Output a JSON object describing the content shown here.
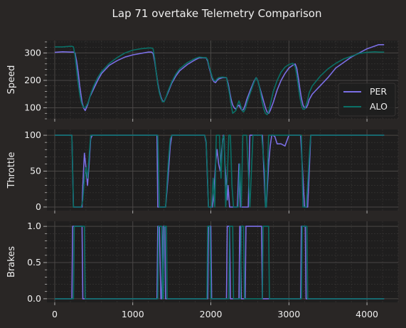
{
  "figure": {
    "title": "Lap 71 overtake Telemetry Comparison"
  },
  "colors": {
    "background": "#292625",
    "panel": "#1f1e1e",
    "grid_major": "#4a4746",
    "grid_minor": "#3a3837",
    "text": "#eeeeee",
    "PER": "#7b6fe6",
    "ALO": "#0a6f66"
  },
  "chart_data": [
    {
      "type": "line",
      "ylabel": "Speed",
      "xlim": [
        -100,
        4400
      ],
      "ylim": [
        60,
        345
      ],
      "yticks": [
        100,
        200,
        300
      ],
      "xticks": [
        0,
        1000,
        2000,
        3000,
        4000
      ],
      "legend": {
        "placement": "lower-right",
        "entries": [
          "PER",
          "ALO"
        ]
      },
      "series": [
        {
          "name": "PER",
          "x": [
            0,
            100,
            200,
            240,
            260,
            280,
            300,
            320,
            340,
            350,
            370,
            390,
            420,
            450,
            500,
            550,
            600,
            700,
            800,
            900,
            1000,
            1100,
            1200,
            1240,
            1260,
            1280,
            1300,
            1320,
            1340,
            1360,
            1380,
            1400,
            1420,
            1450,
            1500,
            1550,
            1600,
            1700,
            1800,
            1850,
            1900,
            1940,
            1960,
            1980,
            2000,
            2020,
            2040,
            2060,
            2080,
            2100,
            2150,
            2200,
            2220,
            2240,
            2260,
            2280,
            2300,
            2320,
            2340,
            2360,
            2380,
            2400,
            2420,
            2440,
            2460,
            2500,
            2550,
            2580,
            2600,
            2620,
            2640,
            2660,
            2680,
            2700,
            2720,
            2740,
            2760,
            2800,
            2850,
            2900,
            2950,
            3000,
            3050,
            3080,
            3100,
            3120,
            3140,
            3160,
            3180,
            3200,
            3220,
            3240,
            3260,
            3300,
            3400,
            3500,
            3600,
            3700,
            3800,
            3900,
            4000,
            4100,
            4150,
            4200,
            4220
          ],
          "values": [
            302,
            304,
            303,
            303,
            300,
            270,
            230,
            180,
            140,
            120,
            100,
            90,
            110,
            140,
            170,
            200,
            225,
            255,
            272,
            285,
            293,
            298,
            303,
            303,
            298,
            270,
            230,
            190,
            160,
            140,
            125,
            123,
            135,
            155,
            190,
            215,
            235,
            258,
            275,
            282,
            282,
            282,
            270,
            245,
            225,
            205,
            195,
            192,
            200,
            205,
            210,
            210,
            190,
            160,
            130,
            110,
            100,
            95,
            105,
            110,
            100,
            90,
            95,
            110,
            130,
            160,
            195,
            210,
            200,
            180,
            160,
            140,
            120,
            100,
            85,
            80,
            90,
            120,
            165,
            200,
            225,
            245,
            255,
            260,
            245,
            210,
            170,
            135,
            110,
            100,
            100,
            110,
            130,
            150,
            180,
            210,
            245,
            265,
            285,
            300,
            315,
            325,
            330,
            330,
            330
          ]
        },
        {
          "name": "ALO",
          "x": [
            0,
            100,
            200,
            220,
            240,
            260,
            280,
            300,
            320,
            340,
            360,
            380,
            400,
            420,
            440,
            460,
            500,
            550,
            600,
            700,
            800,
            900,
            1000,
            1100,
            1200,
            1240,
            1260,
            1280,
            1300,
            1320,
            1340,
            1360,
            1380,
            1400,
            1420,
            1450,
            1500,
            1550,
            1600,
            1700,
            1800,
            1850,
            1900,
            1940,
            1960,
            1980,
            2000,
            2020,
            2040,
            2060,
            2080,
            2100,
            2150,
            2200,
            2220,
            2240,
            2260,
            2280,
            2300,
            2320,
            2340,
            2360,
            2380,
            2400,
            2420,
            2440,
            2460,
            2500,
            2550,
            2580,
            2600,
            2620,
            2640,
            2660,
            2680,
            2700,
            2720,
            2740,
            2760,
            2800,
            2850,
            2900,
            2950,
            3000,
            3050,
            3080,
            3100,
            3120,
            3140,
            3160,
            3180,
            3200,
            3220,
            3240,
            3260,
            3300,
            3400,
            3500,
            3600,
            3700,
            3800,
            3900,
            4000,
            4100,
            4150,
            4200,
            4220
          ],
          "values": [
            322,
            322,
            324,
            324,
            322,
            290,
            240,
            190,
            150,
            120,
            105,
            100,
            105,
            115,
            130,
            150,
            180,
            210,
            232,
            262,
            283,
            300,
            310,
            315,
            318,
            318,
            315,
            280,
            230,
            185,
            155,
            135,
            122,
            122,
            135,
            160,
            195,
            222,
            242,
            265,
            280,
            285,
            283,
            283,
            275,
            250,
            230,
            210,
            200,
            198,
            205,
            210,
            212,
            210,
            180,
            150,
            110,
            80,
            85,
            90,
            110,
            125,
            110,
            90,
            85,
            95,
            115,
            150,
            190,
            210,
            200,
            180,
            150,
            120,
            95,
            80,
            75,
            85,
            110,
            160,
            200,
            230,
            248,
            258,
            262,
            250,
            220,
            180,
            140,
            110,
            95,
            95,
            110,
            130,
            155,
            180,
            215,
            242,
            262,
            278,
            288,
            298,
            302,
            304,
            303,
            303,
            303
          ]
        }
      ]
    },
    {
      "type": "line",
      "ylabel": "Throttle",
      "xlim": [
        -100,
        4400
      ],
      "ylim": [
        -5,
        108
      ],
      "yticks": [
        0,
        50,
        100
      ],
      "xticks": [
        0,
        1000,
        2000,
        3000,
        4000
      ],
      "series": [
        {
          "name": "PER",
          "x": [
            0,
            100,
            200,
            220,
            240,
            300,
            330,
            350,
            360,
            380,
            400,
            420,
            440,
            460,
            480,
            1300,
            1310,
            1320,
            1340,
            1380,
            1420,
            1450,
            1460,
            1480,
            1500,
            1900,
            1920,
            1940,
            1960,
            1970,
            2000,
            2020,
            2040,
            2060,
            2080,
            2100,
            2120,
            2140,
            2160,
            2170,
            2180,
            2200,
            2210,
            2220,
            2240,
            2260,
            2280,
            2300,
            2320,
            2340,
            2360,
            2380,
            2400,
            2420,
            2440,
            2460,
            2480,
            2500,
            2550,
            2600,
            2660,
            2680,
            2700,
            2710,
            2720,
            2740,
            2760,
            2780,
            2800,
            2820,
            2850,
            2900,
            2950,
            3000,
            3050,
            3100,
            3150,
            3200,
            3220,
            3240,
            3260,
            3280,
            3300,
            3350,
            3400,
            3500,
            3600,
            3700,
            3800,
            3900,
            4000,
            4100,
            4200,
            4220
          ],
          "values": [
            100,
            100,
            100,
            100,
            0,
            0,
            0,
            0,
            30,
            75,
            55,
            30,
            60,
            95,
            100,
            100,
            100,
            0,
            0,
            0,
            0,
            40,
            55,
            85,
            100,
            100,
            100,
            90,
            30,
            0,
            0,
            0,
            20,
            60,
            80,
            60,
            50,
            80,
            100,
            95,
            60,
            30,
            10,
            30,
            0,
            0,
            0,
            0,
            0,
            0,
            60,
            0,
            0,
            0,
            0,
            0,
            0,
            100,
            100,
            100,
            100,
            50,
            0,
            0,
            20,
            60,
            85,
            100,
            100,
            98,
            88,
            88,
            85,
            100,
            100,
            100,
            100,
            0,
            0,
            0,
            50,
            100,
            100,
            100,
            100,
            100,
            100,
            100,
            100,
            100,
            100,
            100,
            100,
            100
          ]
        },
        {
          "name": "ALO",
          "x": [
            0,
            100,
            200,
            220,
            240,
            300,
            340,
            360,
            380,
            400,
            420,
            440,
            460,
            480,
            1300,
            1320,
            1340,
            1400,
            1420,
            1450,
            1460,
            1480,
            1500,
            1900,
            1920,
            1940,
            1960,
            1970,
            1990,
            2010,
            2030,
            2050,
            2070,
            2090,
            2110,
            2130,
            2150,
            2170,
            2190,
            2210,
            2230,
            2250,
            2270,
            2290,
            2310,
            2330,
            2350,
            2370,
            2390,
            2410,
            2430,
            2460,
            2500,
            2540,
            2570,
            2600,
            2650,
            2690,
            2700,
            2710,
            2720,
            2740,
            2760,
            2780,
            2800,
            3000,
            3100,
            3160,
            3180,
            3200,
            3220,
            3240,
            3260,
            3280,
            3300,
            3400,
            3500,
            3600,
            3700,
            3800,
            3900,
            4000,
            4100,
            4200,
            4220
          ],
          "values": [
            100,
            100,
            100,
            100,
            0,
            0,
            0,
            10,
            40,
            55,
            40,
            70,
            100,
            100,
            100,
            100,
            0,
            0,
            0,
            55,
            70,
            95,
            100,
            100,
            100,
            92,
            35,
            0,
            0,
            0,
            40,
            0,
            100,
            100,
            100,
            40,
            95,
            100,
            0,
            40,
            100,
            100,
            30,
            0,
            0,
            0,
            0,
            60,
            0,
            100,
            100,
            100,
            0,
            100,
            100,
            100,
            100,
            50,
            0,
            0,
            30,
            100,
            100,
            100,
            100,
            100,
            100,
            100,
            0,
            0,
            0,
            30,
            70,
            100,
            100,
            100,
            100,
            100,
            100,
            100,
            100,
            100,
            100,
            100,
            100
          ]
        }
      ]
    },
    {
      "type": "line",
      "ylabel": "Brakes",
      "xlim": [
        -100,
        4400
      ],
      "ylim": [
        -0.05,
        1.07
      ],
      "yticks": [
        0.0,
        0.5,
        1.0
      ],
      "xticks": [
        0,
        1000,
        2000,
        3000,
        4000
      ],
      "xtick_labels": [
        "0",
        "1000",
        "2000",
        "3000",
        "4000"
      ],
      "ytick_labels": [
        "0.0",
        "0.5",
        "1.0"
      ],
      "series": [
        {
          "name": "PER",
          "x": [
            0,
            220,
            230,
            350,
            360,
            1310,
            1320,
            1340,
            1360,
            1370,
            1390,
            1410,
            1420,
            1960,
            1970,
            2000,
            2010,
            2200,
            2210,
            2240,
            2250,
            2360,
            2370,
            2380,
            2390,
            2440,
            2450,
            2650,
            2660,
            2700,
            2710,
            3150,
            3160,
            3210,
            3220,
            4220
          ],
          "values": [
            0,
            0,
            1,
            1,
            0,
            0,
            1,
            1,
            0,
            0,
            1,
            1,
            0,
            0,
            1,
            1,
            0,
            0,
            1,
            1,
            0,
            0,
            1,
            1,
            0,
            0,
            1,
            1,
            0,
            0,
            0,
            0,
            1,
            1,
            0,
            0
          ]
        },
        {
          "name": "ALO",
          "x": [
            0,
            240,
            250,
            380,
            390,
            1320,
            1330,
            1370,
            1380,
            1390,
            1400,
            1430,
            1440,
            1950,
            1960,
            1990,
            2000,
            2230,
            2240,
            2280,
            2290,
            2380,
            2390,
            2420,
            2430,
            2660,
            2670,
            2740,
            2750,
            3160,
            3170,
            3230,
            3240,
            4220
          ],
          "values": [
            0,
            0,
            1,
            1,
            0,
            0,
            1,
            1,
            0,
            0,
            1,
            1,
            0,
            0,
            1,
            1,
            0,
            0,
            1,
            1,
            0,
            0,
            1,
            1,
            0,
            0,
            1,
            1,
            0,
            0,
            1,
            1,
            0,
            0
          ]
        }
      ]
    }
  ]
}
